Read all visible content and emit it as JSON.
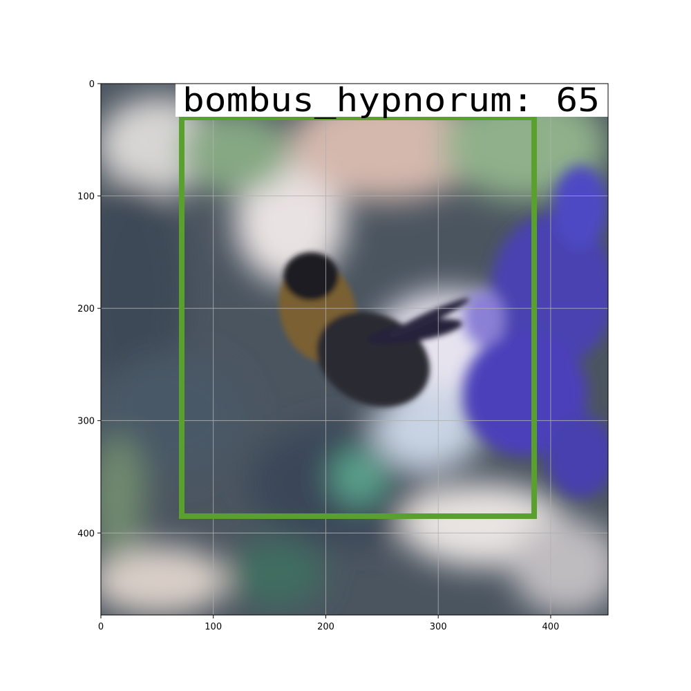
{
  "image": {
    "detection": {
      "label": "bombus_hypnorum: 65",
      "box_color": "#5aa02c",
      "label_bg": "#ffffff",
      "box": {
        "x_min": 72,
        "y_min": 30,
        "x_max": 385,
        "y_max": 385
      }
    },
    "x_axis": {
      "range": [
        0,
        451
      ],
      "ticks": [
        0,
        100,
        200,
        300,
        400
      ],
      "tick_labels": [
        "0",
        "100",
        "200",
        "300",
        "400"
      ]
    },
    "y_axis": {
      "range": [
        0,
        473
      ],
      "ticks": [
        0,
        100,
        200,
        300,
        400
      ],
      "tick_labels": [
        "0",
        "100",
        "200",
        "300",
        "400"
      ]
    },
    "grid": true,
    "colors": {
      "background_blur": "#4b5560",
      "flower": "#4a43b0",
      "leaf": "#7fa07a",
      "bee_body": "#2b2a2e",
      "bee_fur": "#8a6a2e"
    }
  }
}
